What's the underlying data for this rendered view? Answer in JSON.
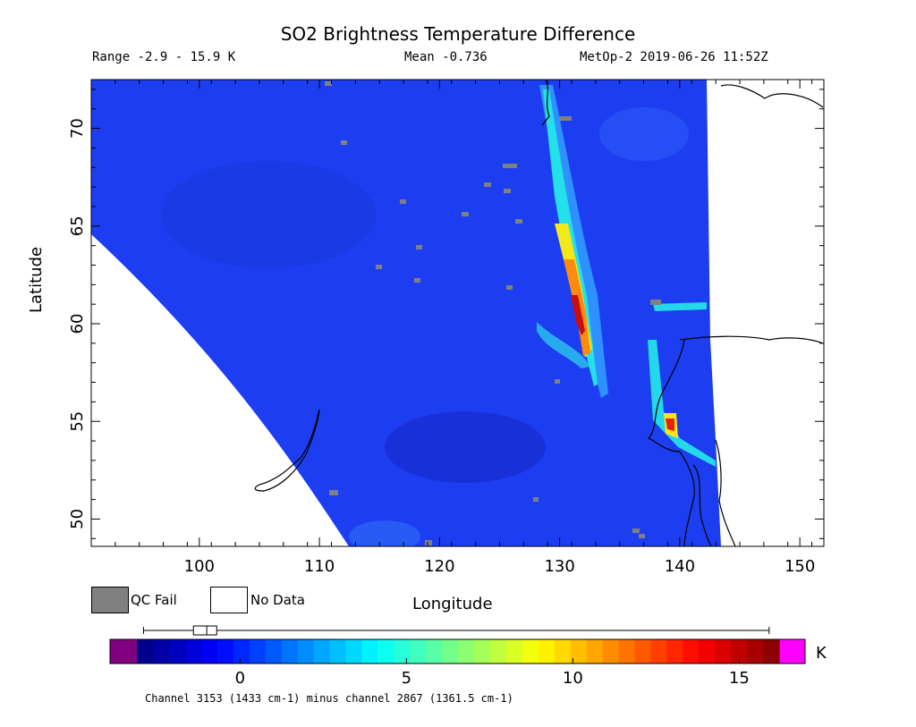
{
  "header": {
    "title": "SO2 Brightness Temperature Difference",
    "range": "Range -2.9 - 15.9 K",
    "mean": "Mean -0.736",
    "stamp": "MetOp-2 2019-06-26 11:52Z"
  },
  "axes": {
    "xlabel": "Longitude",
    "ylabel": "Latitude",
    "x_ticks": [
      "100",
      "110",
      "120",
      "130",
      "140",
      "150"
    ],
    "y_ticks": [
      "50",
      "55",
      "60",
      "65",
      "70"
    ],
    "x_range": [
      91,
      152
    ],
    "y_range": [
      48.6,
      72.5
    ]
  },
  "legend": {
    "qc_fail": "QC Fail",
    "no_data": "No Data",
    "qc_color": "#808080"
  },
  "colorbar": {
    "unit": "K",
    "ticks": [
      "0",
      "5",
      "10",
      "15"
    ],
    "range": [
      -3.1,
      16.2
    ],
    "under_color": "#800080",
    "over_color": "#ff00ff",
    "box_stats": {
      "min": -2.9,
      "q1": -1.4,
      "median": -1.0,
      "q3": -0.7,
      "max": 15.9
    }
  },
  "footnote": "Channel 3153 (1433 cm-1) minus channel 2867 (1361.5 cm-1)",
  "colors": {
    "background_field": "#1d3ef0",
    "frame": "#000000"
  }
}
